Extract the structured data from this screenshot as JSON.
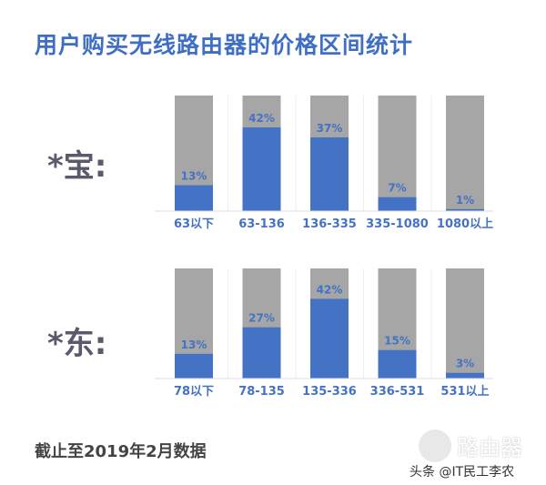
{
  "title": "用户购买无线路由器的价格区间统计",
  "footnote": "截止至2019年2月数据",
  "watermark": {
    "brand": "路由器",
    "credit": "头条 @IT民工李农"
  },
  "colors": {
    "bar": "#4472c4",
    "background_bar": "#a6a6a6",
    "label": "#4472c4"
  },
  "chart_data": [
    {
      "type": "bar",
      "label": "*宝:",
      "categories": [
        "63以下",
        "63-136",
        "136-335",
        "335-1080",
        "1080以上"
      ],
      "values": [
        13,
        42,
        37,
        7,
        1
      ],
      "unit": "%"
    },
    {
      "type": "bar",
      "label": "*东:",
      "categories": [
        "78以下",
        "78-135",
        "135-336",
        "336-531",
        "531以上"
      ],
      "values": [
        13,
        27,
        42,
        15,
        3
      ],
      "unit": "%"
    }
  ]
}
